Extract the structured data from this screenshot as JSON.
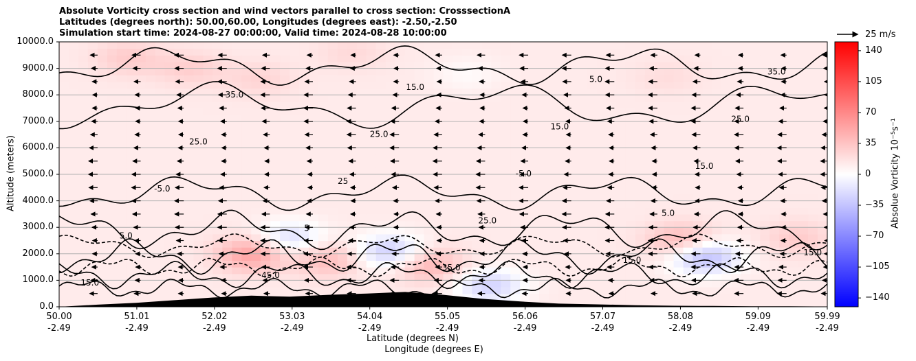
{
  "title_lines": [
    "Absolute Vorticity cross section and wind vectors parallel to cross section: CrosssectionA",
    "Latitudes (degrees north): 50.00,60.00, Longitudes (degrees east): -2.50,-2.50",
    "Simulation start time: 2024-08-27 00:00:00, Valid time: 2024-08-28 10:00:00"
  ],
  "chart_data": {
    "type": "heatmap",
    "subtype": "cross-section with contours and wind vectors",
    "ylabel": "Altitude (meters)",
    "xlabel_lines": [
      "Latitude (degrees N)",
      "Longitude (degrees E)"
    ],
    "ylim": [
      0,
      10000
    ],
    "xlim": [
      50.0,
      59.99
    ],
    "yticks": [
      "0.0",
      "1000.0",
      "2000.0",
      "3000.0",
      "4000.0",
      "5000.0",
      "6000.0",
      "7000.0",
      "8000.0",
      "9000.0",
      "10000.0"
    ],
    "xticks": [
      {
        "lat": "50.00",
        "lon": "-2.49"
      },
      {
        "lat": "51.01",
        "lon": "-2.49"
      },
      {
        "lat": "52.02",
        "lon": "-2.49"
      },
      {
        "lat": "53.03",
        "lon": "-2.49"
      },
      {
        "lat": "54.04",
        "lon": "-2.49"
      },
      {
        "lat": "55.05",
        "lon": "-2.49"
      },
      {
        "lat": "56.06",
        "lon": "-2.49"
      },
      {
        "lat": "57.07",
        "lon": "-2.49"
      },
      {
        "lat": "58.08",
        "lon": "-2.49"
      },
      {
        "lat": "59.09",
        "lon": "-2.49"
      },
      {
        "lat": "59.99",
        "lon": "-2.49"
      }
    ],
    "grid": "horizontal",
    "colorbar": {
      "label": "Absolue Vorticity 10⁻⁵s⁻¹",
      "range": [
        -150,
        150
      ],
      "ticks": [
        "140",
        "105",
        "70",
        "35",
        "0",
        "−35",
        "−70",
        "−105",
        "−140"
      ],
      "colormap": "bwr",
      "low_color": "#0000ff",
      "mid_color": "#ffffff",
      "high_color": "#ff0000"
    },
    "vector_key": {
      "label": "25 m/s",
      "speed": 25
    },
    "wind": {
      "direction": "toward south (leftward along section)"
    },
    "contour_labels": [
      "15.0",
      "5.0",
      "-5.0",
      "25.0",
      "35.0",
      "45.0",
      "5",
      "25",
      "25.0",
      "15.0",
      "35.0",
      "25.0",
      "-5.0",
      "15.0",
      "5.0",
      "15.0",
      "5.0",
      "15.0",
      "25.0",
      "35.0",
      "15.0"
    ],
    "vorticity_field": {
      "background": 12,
      "features": [
        {
          "lat": 50.9,
          "alt": 9400,
          "value": 30
        },
        {
          "lat": 51.7,
          "alt": 9000,
          "value": 28
        },
        {
          "lat": 52.6,
          "alt": 8600,
          "value": 25
        },
        {
          "lat": 53.8,
          "alt": 9600,
          "value": 22
        },
        {
          "lat": 55.3,
          "alt": 8800,
          "value": 3
        },
        {
          "lat": 57.9,
          "alt": 8700,
          "value": 20
        },
        {
          "lat": 52.5,
          "alt": 2000,
          "value": 55
        },
        {
          "lat": 53.0,
          "alt": 2600,
          "value": -20
        },
        {
          "lat": 53.5,
          "alt": 1800,
          "value": 40
        },
        {
          "lat": 54.3,
          "alt": 2100,
          "value": -30
        },
        {
          "lat": 54.8,
          "alt": 1600,
          "value": 45
        },
        {
          "lat": 55.6,
          "alt": 800,
          "value": -25
        },
        {
          "lat": 58.1,
          "alt": 2500,
          "value": 45
        },
        {
          "lat": 58.4,
          "alt": 1900,
          "value": -40
        },
        {
          "lat": 59.6,
          "alt": 2600,
          "value": 30
        }
      ]
    },
    "terrain": [
      {
        "lat": 50.0,
        "alt": 0
      },
      {
        "lat": 50.5,
        "alt": 80
      },
      {
        "lat": 51.0,
        "alt": 150
      },
      {
        "lat": 51.5,
        "alt": 250
      },
      {
        "lat": 52.0,
        "alt": 350
      },
      {
        "lat": 52.5,
        "alt": 420
      },
      {
        "lat": 53.0,
        "alt": 380
      },
      {
        "lat": 53.5,
        "alt": 450
      },
      {
        "lat": 54.0,
        "alt": 500
      },
      {
        "lat": 54.5,
        "alt": 560
      },
      {
        "lat": 55.0,
        "alt": 450
      },
      {
        "lat": 55.5,
        "alt": 300
      },
      {
        "lat": 56.0,
        "alt": 200
      },
      {
        "lat": 56.5,
        "alt": 120
      },
      {
        "lat": 57.0,
        "alt": 90
      },
      {
        "lat": 57.5,
        "alt": 60
      },
      {
        "lat": 58.0,
        "alt": 40
      },
      {
        "lat": 58.5,
        "alt": 30
      },
      {
        "lat": 59.0,
        "alt": 20
      },
      {
        "lat": 59.5,
        "alt": 20
      },
      {
        "lat": 59.99,
        "alt": 10
      }
    ]
  }
}
